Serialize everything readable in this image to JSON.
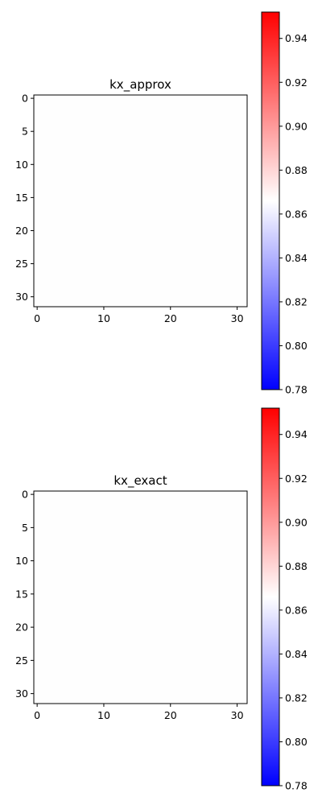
{
  "chart_data": [
    {
      "type": "heatmap",
      "title": "kx_approx",
      "xlim": [
        -0.5,
        31.5
      ],
      "ylim": [
        31.5,
        -0.5
      ],
      "xticks": [
        0,
        10,
        20,
        30
      ],
      "yticks": [
        0,
        5,
        10,
        15,
        20,
        25,
        30
      ],
      "colormap": "bwr",
      "fill_color": "#fefefe",
      "colorbar": {
        "vmin": 0.78,
        "vmax": 0.952,
        "ticks": [
          0.78,
          0.8,
          0.82,
          0.84,
          0.86,
          0.88,
          0.9,
          0.92,
          0.94
        ],
        "tick_labels": [
          "0.78",
          "0.80",
          "0.82",
          "0.84",
          "0.86",
          "0.88",
          "0.90",
          "0.92",
          "0.94"
        ],
        "colors": [
          "#0000ff",
          "#ffffff",
          "#ff0000"
        ]
      }
    },
    {
      "type": "heatmap",
      "title": "kx_exact",
      "xlim": [
        -0.5,
        31.5
      ],
      "ylim": [
        31.5,
        -0.5
      ],
      "xticks": [
        0,
        10,
        20,
        30
      ],
      "yticks": [
        0,
        5,
        10,
        15,
        20,
        25,
        30
      ],
      "colormap": "bwr",
      "fill_color": "#fefefe",
      "colorbar": {
        "vmin": 0.78,
        "vmax": 0.952,
        "ticks": [
          0.78,
          0.8,
          0.82,
          0.84,
          0.86,
          0.88,
          0.9,
          0.92,
          0.94
        ],
        "tick_labels": [
          "0.78",
          "0.80",
          "0.82",
          "0.84",
          "0.86",
          "0.88",
          "0.90",
          "0.92",
          "0.94"
        ],
        "colors": [
          "#0000ff",
          "#ffffff",
          "#ff0000"
        ]
      }
    }
  ]
}
